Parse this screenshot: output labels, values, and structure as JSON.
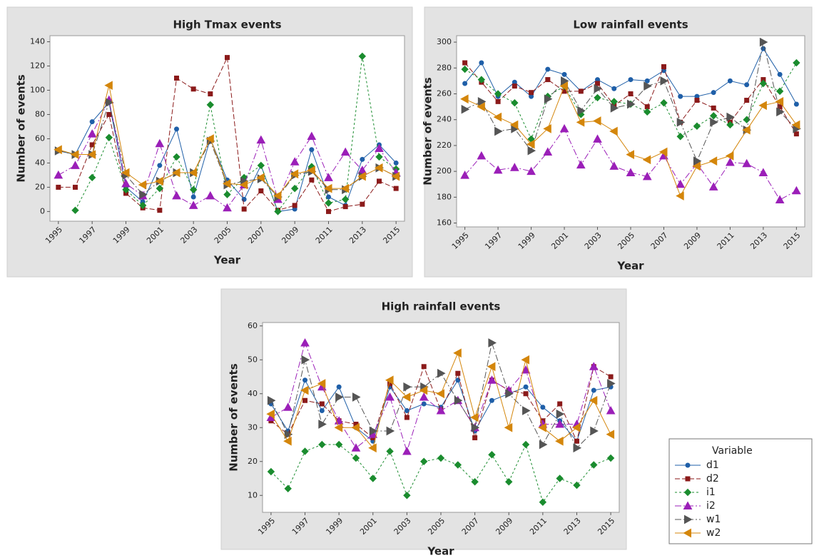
{
  "chart_data": [
    {
      "type": "line",
      "title": "High Tmax events",
      "x_label": "Year",
      "y_label": "Number of events",
      "x": [
        1995,
        1996,
        1997,
        1998,
        1999,
        2000,
        2001,
        2002,
        2003,
        2004,
        2005,
        2006,
        2007,
        2008,
        2009,
        2010,
        2011,
        2012,
        2013,
        2014,
        2015
      ],
      "xlim": [
        1994.5,
        2015.5
      ],
      "xticks": [
        1995,
        1997,
        1999,
        2001,
        2003,
        2005,
        2007,
        2009,
        2011,
        2013,
        2015
      ],
      "ylim": [
        -8,
        145
      ],
      "yticks": [
        0,
        20,
        40,
        60,
        80,
        100,
        120,
        140
      ],
      "series": [
        {
          "values": [
            50,
            47,
            74,
            90,
            20,
            8,
            38,
            68,
            12,
            60,
            26,
            10,
            38,
            0,
            2,
            51,
            12,
            5,
            43,
            55,
            40
          ]
        },
        {
          "values": [
            20,
            20,
            55,
            80,
            15,
            3,
            1,
            110,
            101,
            97,
            127,
            2,
            17,
            1,
            5,
            26,
            0,
            4,
            6,
            25,
            19
          ]
        },
        {
          "values": [
            null,
            1,
            28,
            61,
            18,
            5,
            19,
            45,
            18,
            88,
            14,
            28,
            38,
            0,
            19,
            37,
            7,
            10,
            128,
            45,
            35
          ]
        },
        {
          "values": [
            30,
            38,
            64,
            92,
            23,
            13,
            56,
            13,
            5,
            13,
            3,
            22,
            59,
            10,
            41,
            62,
            28,
            49,
            34,
            52,
            32
          ]
        },
        {
          "values": [
            50,
            47,
            47,
            90,
            30,
            14,
            25,
            32,
            32,
            58,
            22,
            25,
            27,
            12,
            30,
            33,
            18,
            18,
            29,
            36,
            29
          ]
        },
        {
          "values": [
            51,
            47,
            47,
            104,
            32,
            22,
            25,
            32,
            32,
            60,
            23,
            22,
            28,
            13,
            31,
            34,
            19,
            19,
            29,
            36,
            29
          ]
        }
      ]
    },
    {
      "type": "line",
      "title": "Low rainfall events",
      "x_label": "Year",
      "y_label": "Number of events",
      "x": [
        1995,
        1996,
        1997,
        1998,
        1999,
        2000,
        2001,
        2002,
        2003,
        2004,
        2005,
        2006,
        2007,
        2008,
        2009,
        2010,
        2011,
        2012,
        2013,
        2014,
        2015
      ],
      "xlim": [
        1994.5,
        2015.5
      ],
      "xticks": [
        1995,
        1997,
        1999,
        2001,
        2003,
        2005,
        2007,
        2009,
        2011,
        2013,
        2015
      ],
      "ylim": [
        157,
        305
      ],
      "yticks": [
        160,
        180,
        200,
        220,
        240,
        260,
        280,
        300
      ],
      "series": [
        {
          "values": [
            268,
            284,
            258,
            269,
            258,
            279,
            275,
            262,
            271,
            264,
            271,
            270,
            278,
            258,
            258,
            261,
            270,
            267,
            295,
            275,
            252
          ]
        },
        {
          "values": [
            284,
            269,
            254,
            266,
            261,
            271,
            262,
            262,
            268,
            251,
            260,
            250,
            281,
            238,
            255,
            249,
            238,
            255,
            271,
            250,
            229
          ]
        },
        {
          "values": [
            279,
            271,
            260,
            253,
            225,
            258,
            266,
            244,
            257,
            254,
            252,
            246,
            253,
            227,
            235,
            243,
            236,
            240,
            268,
            262,
            284
          ]
        },
        {
          "values": [
            197,
            212,
            201,
            203,
            200,
            215,
            233,
            205,
            225,
            204,
            199,
            196,
            212,
            190,
            206,
            188,
            207,
            206,
            199,
            178,
            185
          ]
        },
        {
          "values": [
            248,
            254,
            231,
            233,
            216,
            256,
            270,
            247,
            264,
            249,
            252,
            266,
            270,
            238,
            208,
            238,
            242,
            232,
            300,
            246,
            233
          ]
        },
        {
          "values": [
            256,
            250,
            242,
            236,
            221,
            233,
            266,
            238,
            239,
            231,
            213,
            209,
            215,
            181,
            204,
            208,
            212,
            232,
            251,
            254,
            236
          ]
        }
      ]
    },
    {
      "type": "line",
      "title": "High rainfall events",
      "x_label": "Year",
      "y_label": "Number of events",
      "x": [
        1995,
        1996,
        1997,
        1998,
        1999,
        2000,
        2001,
        2002,
        2003,
        2004,
        2005,
        2006,
        2007,
        2008,
        2009,
        2010,
        2011,
        2012,
        2013,
        2014,
        2015
      ],
      "xlim": [
        1994.5,
        2015.5
      ],
      "xticks": [
        1995,
        1997,
        1999,
        2001,
        2003,
        2005,
        2007,
        2009,
        2011,
        2013,
        2015
      ],
      "ylim": [
        5,
        61
      ],
      "yticks": [
        10,
        20,
        30,
        40,
        50,
        60
      ],
      "series": [
        {
          "values": [
            37,
            29,
            44,
            35,
            42,
            30,
            26,
            42,
            35,
            37,
            36,
            44,
            29,
            38,
            40,
            42,
            36,
            32,
            26,
            41,
            42
          ]
        },
        {
          "values": [
            32,
            28,
            38,
            37,
            32,
            31,
            27,
            43,
            33,
            48,
            35,
            46,
            27,
            44,
            41,
            40,
            32,
            37,
            26,
            48,
            45
          ]
        },
        {
          "values": [
            17,
            12,
            23,
            25,
            25,
            21,
            15,
            23,
            10,
            20,
            21,
            19,
            14,
            22,
            14,
            25,
            8,
            15,
            13,
            19,
            21
          ]
        },
        {
          "values": [
            33,
            36,
            55,
            42,
            32,
            24,
            28,
            39,
            23,
            39,
            35,
            38,
            30,
            44,
            41,
            47,
            31,
            31,
            31,
            48,
            35
          ]
        },
        {
          "values": [
            38,
            28,
            50,
            31,
            39,
            39,
            29,
            29,
            42,
            42,
            46,
            38,
            30,
            55,
            40,
            35,
            25,
            34,
            24,
            29,
            43
          ]
        },
        {
          "values": [
            34,
            26,
            41,
            43,
            30,
            30,
            24,
            44,
            39,
            41,
            40,
            52,
            33,
            48,
            30,
            50,
            30,
            26,
            30,
            38,
            28
          ]
        }
      ]
    }
  ],
  "legend": {
    "title": "Variable",
    "series": [
      {
        "name": "d1",
        "color": "#1f5fa8",
        "marker": "circle",
        "dash": "solid"
      },
      {
        "name": "d2",
        "color": "#8b1a1a",
        "marker": "square",
        "dash": "dashed"
      },
      {
        "name": "i1",
        "color": "#1a8c2e",
        "marker": "diamond",
        "dash": "dotted"
      },
      {
        "name": "i2",
        "color": "#9b1fb8",
        "marker": "triangle-up",
        "dash": "dashdot"
      },
      {
        "name": "w1",
        "color": "#555555",
        "marker": "triangle-right",
        "dash": "dashdot"
      },
      {
        "name": "w2",
        "color": "#d4860b",
        "marker": "triangle-left",
        "dash": "solid"
      }
    ]
  }
}
